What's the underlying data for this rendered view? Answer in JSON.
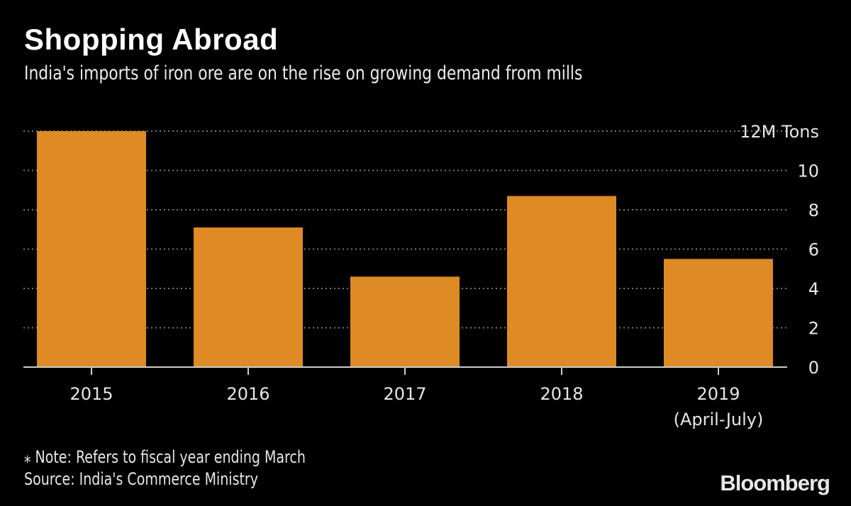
{
  "header": {
    "title": "Shopping Abroad",
    "subtitle": "India's imports of iron ore are on the rise on growing demand from mills"
  },
  "chart_data": {
    "type": "bar",
    "categories": [
      "2015",
      "2016",
      "2017",
      "2018",
      "2019"
    ],
    "category_sublabels": [
      "",
      "",
      "",
      "",
      "(April-July)"
    ],
    "values": [
      12.0,
      7.1,
      4.6,
      8.7,
      5.5
    ],
    "ylim": [
      0,
      12
    ],
    "yticks": [
      0,
      2,
      4,
      6,
      8,
      10,
      12
    ],
    "ytick_labels": [
      "0",
      "2",
      "4",
      "6",
      "8",
      "10",
      "12M Tons"
    ],
    "ylabel": "",
    "xlabel": "",
    "grid": "horizontal dotted",
    "bar_color": "#DE8A25",
    "axis_side": "right"
  },
  "footer": {
    "note": "⁎ Note: Refers to fiscal year ending March",
    "source": "Source: India's Commerce Ministry",
    "logo": "Bloomberg"
  }
}
